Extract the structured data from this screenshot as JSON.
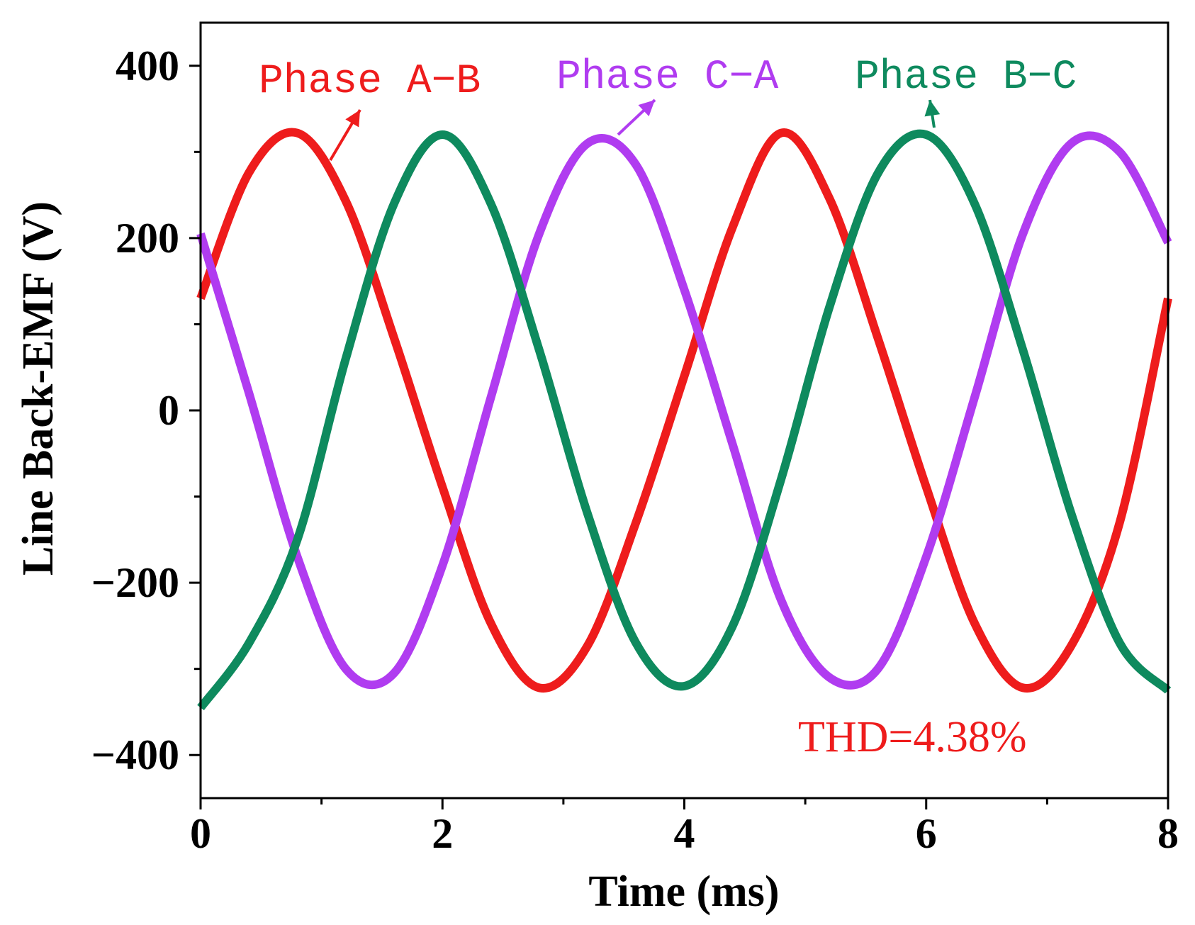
{
  "chart_data": {
    "type": "line",
    "title": "",
    "xlabel": "Time (ms)",
    "ylabel": "Line Back-EMF (V)",
    "xlim": [
      0,
      8
    ],
    "ylim": [
      -450,
      450
    ],
    "xticks": [
      0,
      2,
      4,
      6,
      8
    ],
    "yticks": [
      -400,
      -200,
      0,
      200,
      400
    ],
    "xtick_labels": [
      "0",
      "2",
      "4",
      "6",
      "8"
    ],
    "ytick_labels": [
      "−400",
      "−200",
      "0",
      "200",
      "400"
    ],
    "grid": false,
    "annotation": "THD=4.38%",
    "series": [
      {
        "name": "Phase A-B",
        "label": "Phase A−B",
        "color": "#ee1c1c",
        "x": [
          0,
          0.4,
          0.8,
          1.2,
          1.6,
          2.0,
          2.4,
          2.8,
          3.2,
          3.6,
          4.0,
          4.4,
          4.8,
          5.2,
          5.6,
          6.0,
          6.4,
          6.8,
          7.2,
          7.6,
          8.0
        ],
        "y": [
          130,
          276,
          322,
          243,
          84,
          -89,
          -247,
          -322,
          -273,
          -130,
          40,
          213,
          322,
          246,
          84,
          -89,
          -247,
          -322,
          -273,
          -130,
          130
        ]
      },
      {
        "name": "Phase C-A",
        "label": "Phase C−A",
        "color": "#b03cf0",
        "x": [
          0,
          0.4,
          0.8,
          1.2,
          1.6,
          2.0,
          2.4,
          2.8,
          3.2,
          3.6,
          4.0,
          4.4,
          4.8,
          5.2,
          5.6,
          6.0,
          6.4,
          6.8,
          7.2,
          7.6,
          8.0
        ],
        "y": [
          205,
          20,
          -170,
          -300,
          -305,
          -180,
          15,
          205,
          310,
          285,
          140,
          -40,
          -220,
          -310,
          -300,
          -170,
          15,
          205,
          310,
          300,
          195
        ]
      },
      {
        "name": "Phase B-C",
        "label": "Phase B−C",
        "color": "#0e8a5e",
        "x": [
          0,
          0.4,
          0.8,
          1.2,
          1.6,
          2.0,
          2.4,
          2.8,
          3.2,
          3.6,
          4.0,
          4.4,
          4.8,
          5.2,
          5.6,
          6.0,
          6.4,
          6.8,
          7.2,
          7.6,
          8.0
        ],
        "y": [
          -345,
          -270,
          -150,
          60,
          240,
          320,
          240,
          70,
          -120,
          -270,
          -320,
          -250,
          -80,
          120,
          275,
          320,
          240,
          70,
          -120,
          -270,
          -325
        ]
      }
    ]
  }
}
